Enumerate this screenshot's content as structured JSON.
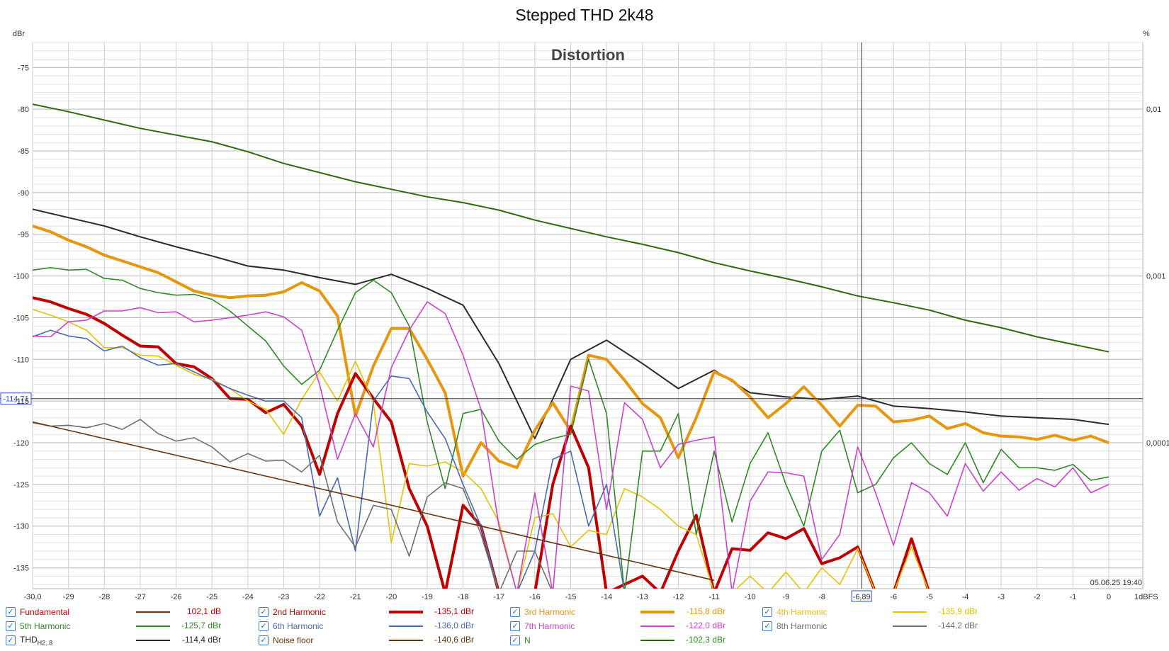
{
  "title": "Stepped THD 2k48",
  "panel_label": "Distortion",
  "timestamp": "05.06.25 19:40",
  "y_unit_left": "dBr",
  "y_unit_right": "%",
  "x_unit": "1dBFS",
  "cursor": {
    "y_readout": "-114,71",
    "x_readout": "-6,89"
  },
  "chart_data": {
    "type": "line",
    "title": "Stepped THD 2k48",
    "xlabel": "1dBFS",
    "ylabel": "dBr",
    "xlim": [
      -30,
      0
    ],
    "ylim": [
      -137.5,
      -72
    ],
    "x_tick_labels": [
      "-30,0",
      "-29",
      "-28",
      "-27",
      "-26",
      "-25",
      "-24",
      "-23",
      "-22",
      "-21",
      "-20",
      "-19",
      "-18",
      "-17",
      "-16",
      "-15",
      "-14",
      "-13",
      "-12",
      "-11",
      "-10",
      "-9",
      "-8",
      "-6,89",
      "-6",
      "-5",
      "-4",
      "-3",
      "-2",
      "-1",
      "0"
    ],
    "y_tick_labels": [
      "-75",
      "-80",
      "-85",
      "-90",
      "-95",
      "-100",
      "-105",
      "-110",
      "-115",
      "-120",
      "-125",
      "-130",
      "-135"
    ],
    "right_tick_labels": [
      "0,01",
      "0,001",
      "0,0001"
    ],
    "grid": true,
    "cursor_lines": {
      "x": -6.89,
      "y": -114.71
    },
    "series": [
      {
        "name": "N",
        "color": "#2e6a0e",
        "width": 2,
        "x": [
          -30,
          -29,
          -28,
          -27,
          -26,
          -25,
          -24,
          -23,
          -22,
          -21,
          -20,
          -19,
          -18,
          -17,
          -16,
          -15,
          -14,
          -13,
          -12,
          -11,
          -10,
          -9,
          -8,
          -7,
          -6,
          -5,
          -4,
          -3,
          -2,
          -1,
          0
        ],
        "y": [
          -79.4,
          -80.3,
          -81.3,
          -82.3,
          -83.1,
          -83.9,
          -85.1,
          -86.5,
          -87.6,
          -88.7,
          -89.6,
          -90.5,
          -91.2,
          -92.1,
          -93.3,
          -94.3,
          -95.3,
          -96.2,
          -97.2,
          -98.4,
          -99.4,
          -100.3,
          -101.3,
          -102.4,
          -103.2,
          -104.1,
          -105.3,
          -106.2,
          -107.3,
          -108.2,
          -109.1
        ]
      },
      {
        "name": "THD H2..8",
        "color": "#2b2b2b",
        "width": 2,
        "x": [
          -30,
          -29,
          -28,
          -27,
          -26,
          -25,
          -24,
          -23,
          -22,
          -21,
          -20,
          -19,
          -18,
          -17,
          -16,
          -15,
          -14,
          -13,
          -12,
          -11,
          -10,
          -9,
          -8,
          -7,
          -6,
          -5,
          -4,
          -3,
          -2,
          -1,
          0
        ],
        "y": [
          -92,
          -93,
          -94,
          -95.3,
          -96.5,
          -97.6,
          -98.8,
          -99.3,
          -100.2,
          -101,
          -99.8,
          -101.5,
          -103.5,
          -110.5,
          -119.5,
          -110,
          -107.7,
          -110.5,
          -113.5,
          -111.3,
          -114,
          -114.5,
          -114.8,
          -114.4,
          -115.6,
          -115.9,
          -116.3,
          -116.8,
          -117,
          -117.2,
          -117.8
        ]
      },
      {
        "name": "3rd Harmonic",
        "color": "#e8960f",
        "width": 4,
        "x": [
          -30,
          -29.5,
          -29,
          -28.5,
          -28,
          -27.5,
          -27,
          -26.5,
          -26,
          -25.5,
          -25,
          -24.5,
          -24,
          -23.5,
          -23,
          -22.5,
          -22,
          -21.5,
          -21,
          -20.5,
          -20,
          -19.5,
          -19,
          -18.5,
          -18,
          -17.5,
          -17,
          -16.5,
          -16,
          -15.5,
          -15,
          -14.5,
          -14,
          -13.5,
          -13,
          -12.5,
          -12,
          -11.5,
          -11,
          -10.5,
          -10,
          -9.5,
          -9,
          -8.5,
          -8,
          -7.5,
          -7,
          -6.5,
          -6,
          -5.5,
          -5,
          -4.5,
          -4,
          -3.5,
          -3,
          -2.5,
          -2,
          -1.5,
          -1,
          -0.5,
          0
        ],
        "y": [
          -94,
          -94.7,
          -95.7,
          -96.5,
          -97.5,
          -98.2,
          -98.9,
          -99.6,
          -100.7,
          -101.8,
          -102.3,
          -102.6,
          -102.4,
          -102.3,
          -101.9,
          -100.8,
          -101.8,
          -104.8,
          -116.8,
          -110.8,
          -106.3,
          -106.3,
          -110,
          -114,
          -124,
          -120,
          -122.2,
          -123,
          -118.5,
          -115.2,
          -118.6,
          -109.5,
          -110,
          -112.5,
          -115.3,
          -117,
          -121.8,
          -117,
          -111.5,
          -112.5,
          -114.5,
          -117,
          -115.3,
          -113.3,
          -115.5,
          -118,
          -115.5,
          -115.6,
          -117.5,
          -117.3,
          -116.8,
          -118.3,
          -117.7,
          -118.8,
          -119.2,
          -119.3,
          -119.6,
          -119.1,
          -119.7,
          -119.2,
          -120
        ]
      },
      {
        "name": "2nd Harmonic",
        "color": "#c00000",
        "width": 4,
        "x": [
          -30,
          -29.5,
          -29,
          -28.5,
          -28,
          -27.5,
          -27,
          -26.5,
          -26,
          -25.5,
          -25,
          -24.5,
          -24,
          -23.5,
          -23,
          -22.5,
          -22,
          -21.5,
          -21,
          -20.5,
          -20,
          -19.5,
          -19,
          -18.5,
          -18,
          -17.5,
          -17,
          -16,
          -15.5,
          -15,
          -14.5,
          -14,
          -13,
          -12.5,
          -12,
          -11.5,
          -11,
          -10.5,
          -10,
          -9.5,
          -9,
          -8.5,
          -8,
          -7.5,
          -7,
          -6.5,
          -6,
          -5.5,
          -5,
          -4,
          -3,
          -2,
          -1,
          0
        ],
        "y": [
          -102.6,
          -103.1,
          -103.9,
          -104.6,
          -105.7,
          -107.1,
          -108.4,
          -108.5,
          -110.5,
          -110.9,
          -112.3,
          -114.7,
          -114.8,
          -116.4,
          -115.4,
          -118,
          -123.8,
          -116.5,
          -111.7,
          -114.7,
          -117.5,
          -125.5,
          -130,
          -138,
          -127.5,
          -130,
          -138,
          -138,
          -125,
          -118,
          -123,
          -138,
          -136,
          -138,
          -133,
          -128.7,
          -138,
          -132.7,
          -132.9,
          -130.8,
          -131.5,
          -130.3,
          -134.5,
          -133.8,
          -132.5,
          -138,
          -138,
          -131.5,
          -138,
          -138,
          -138,
          -138,
          -138,
          -138
        ]
      },
      {
        "name": "4th Harmonic",
        "color": "#e6c200",
        "width": 1.6,
        "x": [
          -30,
          -29.5,
          -29,
          -28.5,
          -28,
          -27.5,
          -27,
          -26.5,
          -26,
          -25.5,
          -25,
          -24.5,
          -24,
          -23.5,
          -23,
          -22.5,
          -22,
          -21.5,
          -21,
          -20.5,
          -20,
          -19.5,
          -19,
          -18.5,
          -18,
          -17.5,
          -17,
          -16.5,
          -16,
          -15.5,
          -15,
          -14.5,
          -14,
          -13.5,
          -13,
          -12.5,
          -12,
          -11.5,
          -11,
          -10.5,
          -10,
          -9.5,
          -9,
          -8.5,
          -8,
          -7.5,
          -7,
          -6.5,
          -6,
          -5.5,
          -5
        ],
        "y": [
          -104,
          -104.7,
          -105.5,
          -106.5,
          -108.6,
          -108.6,
          -109.5,
          -109.6,
          -110.7,
          -111.8,
          -112.4,
          -113.5,
          -115,
          -116,
          -119,
          -114.8,
          -111.5,
          -115,
          -110.2,
          -115.2,
          -132,
          -122.5,
          -122.8,
          -122.3,
          -123.5,
          -125.5,
          -129.5,
          -138,
          -129,
          -128.5,
          -132.5,
          -130.5,
          -131,
          -125.5,
          -126.5,
          -128,
          -130,
          -131,
          -138,
          -138,
          -136,
          -138,
          -135.5,
          -138,
          -135,
          -137,
          -132.7,
          -138,
          -138,
          -132.5,
          -138
        ]
      },
      {
        "name": "5th Harmonic",
        "color": "#2e8b22",
        "width": 1.6,
        "x": [
          -30,
          -29.5,
          -29,
          -28.5,
          -28,
          -27.5,
          -27,
          -26.5,
          -26,
          -25.5,
          -25,
          -24.5,
          -24,
          -23.5,
          -23,
          -22.5,
          -22,
          -21.5,
          -21,
          -20.5,
          -20,
          -19.5,
          -19,
          -18.5,
          -18,
          -17.5,
          -17,
          -16.5,
          -16,
          -15.5,
          -15,
          -14.5,
          -14,
          -13.5,
          -13,
          -12.5,
          -12,
          -11.5,
          -11,
          -10.5,
          -10,
          -9.5,
          -9,
          -8.5,
          -8,
          -7.5,
          -7,
          -6.5,
          -6,
          -5.5,
          -5,
          -4.5,
          -4,
          -3.5,
          -3,
          -2.5,
          -2,
          -1.5,
          -1,
          -0.5,
          0
        ],
        "y": [
          -99.3,
          -99,
          -99.3,
          -99.2,
          -100.3,
          -100.5,
          -101.5,
          -102,
          -102.3,
          -102.2,
          -102.8,
          -104.2,
          -106,
          -107.8,
          -110.8,
          -113,
          -111.3,
          -106.5,
          -102,
          -100.5,
          -102,
          -106,
          -117.5,
          -125.5,
          -116.5,
          -116,
          -119.8,
          -122,
          -120.2,
          -119.5,
          -119,
          -110,
          -116.5,
          -138,
          -121,
          -121,
          -116.5,
          -131,
          -121,
          -129.5,
          -122.5,
          -118.8,
          -125,
          -130,
          -121,
          -118.5,
          -126,
          -125,
          -121.8,
          -120,
          -122.5,
          -123.8,
          -120,
          -124.8,
          -120.8,
          -123,
          -123,
          -123.3,
          -122.6,
          -124.5,
          -124.1
        ]
      },
      {
        "name": "6th Harmonic",
        "color": "#4a6ab8",
        "width": 1.6,
        "x": [
          -30,
          -29.5,
          -29,
          -28.5,
          -28,
          -27.5,
          -27,
          -26.5,
          -26,
          -25.5,
          -25,
          -24.5,
          -24,
          -23.5,
          -23,
          -22.5,
          -22,
          -21.5,
          -21,
          -20.5,
          -20,
          -19.5,
          -19,
          -18.5,
          -18,
          -17.5,
          -17,
          -16.5,
          -16,
          -15.5,
          -15,
          -14.5,
          -14,
          -13.5,
          -13
        ],
        "y": [
          -107.3,
          -106.5,
          -107.2,
          -107.5,
          -109,
          -108.4,
          -109.8,
          -110.7,
          -110.5,
          -111.5,
          -112.5,
          -113.5,
          -114.3,
          -115,
          -115,
          -117,
          -128.8,
          -124.2,
          -133,
          -115,
          -112,
          -112.3,
          -116.3,
          -119.5,
          -125,
          -130,
          -138,
          -138,
          -133,
          -122,
          -121,
          -130,
          -125,
          -138,
          -138
        ]
      },
      {
        "name": "7th Harmonic",
        "color": "#d040d0",
        "width": 1.6,
        "x": [
          -30,
          -29.5,
          -29,
          -28.5,
          -28,
          -27.5,
          -27,
          -26.5,
          -26,
          -25.5,
          -25,
          -24.5,
          -24,
          -23.5,
          -23,
          -22.5,
          -22,
          -21.5,
          -21,
          -20.5,
          -20,
          -19.5,
          -19,
          -18.5,
          -18,
          -17.5,
          -17,
          -16.5,
          -16,
          -15.5,
          -15,
          -14.5,
          -14,
          -13.5,
          -13,
          -12.5,
          -12,
          -11.5,
          -11,
          -10.5,
          -10,
          -9.5,
          -9,
          -8.5,
          -8,
          -7.5,
          -7,
          -6.5,
          -6,
          -5.5,
          -5,
          -4.5,
          -4,
          -3.5,
          -3,
          -2.5,
          -2,
          -1.5,
          -1,
          -0.5,
          0
        ],
        "y": [
          -107.2,
          -107.3,
          -105.5,
          -105.3,
          -104.2,
          -104.2,
          -103.8,
          -104.4,
          -104.3,
          -105.5,
          -105.3,
          -105,
          -104.7,
          -104.3,
          -104.9,
          -106.5,
          -113,
          -122,
          -116.5,
          -120.5,
          -111,
          -106.5,
          -103.1,
          -104.5,
          -109.5,
          -116,
          -130,
          -138,
          -126,
          -138,
          -113.2,
          -113.8,
          -128,
          -115.2,
          -117.2,
          -123,
          -120.2,
          -119.7,
          -119.3,
          -138,
          -127,
          -123.5,
          -123.6,
          -124,
          -134,
          -131,
          -120.5,
          -126,
          -132.3,
          -124.8,
          -126,
          -128.8,
          -122.5,
          -125.8,
          -123.5,
          -125.7,
          -124.3,
          -125.3,
          -123,
          -126,
          -125
        ]
      },
      {
        "name": "8th Harmonic",
        "color": "#707070",
        "width": 1.6,
        "x": [
          -30,
          -29.5,
          -29,
          -28.5,
          -28,
          -27.5,
          -27,
          -26.5,
          -26,
          -25.5,
          -25,
          -24.5,
          -24,
          -23.5,
          -23,
          -22.5,
          -22,
          -21.5,
          -21,
          -20.5,
          -20,
          -19.5,
          -19,
          -18.5,
          -18,
          -17.5,
          -17,
          -16.5,
          -16,
          -15.5,
          -15,
          -14.5,
          -14
        ],
        "y": [
          -117.6,
          -118,
          -117.9,
          -118.2,
          -117.7,
          -118.4,
          -117.2,
          -118.9,
          -119.8,
          -119.4,
          -120.5,
          -122.3,
          -121.3,
          -122.2,
          -122.1,
          -123.5,
          -121.5,
          -129.5,
          -132.5,
          -127.5,
          -128,
          -133.6,
          -126.5,
          -124.8,
          -125.5,
          -131,
          -138,
          -133,
          -133,
          -138,
          -138,
          -138,
          -138
        ]
      },
      {
        "name": "Noise floor",
        "color": "#6b3510",
        "width": 1.6,
        "x": [
          -30,
          -11
        ],
        "y": [
          -117.5,
          -136.5
        ]
      }
    ]
  },
  "legend": {
    "rows": [
      [
        {
          "name": "Fundamental",
          "value": "102,1 dB",
          "color": "#7a3712",
          "name_color": "#c00000",
          "value_color": "#c00000",
          "thick": false
        },
        {
          "name": "2nd Harmonic",
          "value": "-135,1 dBr",
          "color": "#c00000",
          "name_color": "#c00000",
          "value_color": "#c00000",
          "thick": true
        },
        {
          "name": "3rd Harmonic",
          "value": "-115,8 dBr",
          "color": "#e8960f",
          "name_color": "#e8960f",
          "value_color": "#e8960f",
          "thick": true
        },
        {
          "name": "4th Harmonic",
          "value": "-135,9 dBr",
          "color": "#e6c200",
          "name_color": "#e6c200",
          "value_color": "#e6c200",
          "thick": false
        }
      ],
      [
        {
          "name": "5th Harmonic",
          "value": "-125,7 dBr",
          "color": "#2e8b22",
          "name_color": "#2e8b22",
          "value_color": "#2e8b22",
          "thick": false
        },
        {
          "name": "6th Harmonic",
          "value": "-136,0 dBr",
          "color": "#4a6ab8",
          "name_color": "#4a6ab8",
          "value_color": "#4a6ab8",
          "thick": false
        },
        {
          "name": "7th Harmonic",
          "value": "-122,0 dBr",
          "color": "#d040d0",
          "name_color": "#d040d0",
          "value_color": "#d040d0",
          "thick": false
        },
        {
          "name": "8th Harmonic",
          "value": "-144,2 dBr",
          "color": "#707070",
          "name_color": "#707070",
          "value_color": "#707070",
          "thick": false
        }
      ],
      [
        {
          "name": "THD",
          "sub": "H2..8",
          "value": "-114,4 dBr",
          "color": "#2b2b2b",
          "name_color": "#2b2b2b",
          "value_color": "#2b2b2b",
          "thick": false
        },
        {
          "name": "Noise floor",
          "value": "-140,6 dBr",
          "color": "#6b3510",
          "name_color": "#6b3510",
          "value_color": "#6b3510",
          "thick": false
        },
        {
          "name": "N",
          "value": "-102,3 dBr",
          "color": "#2e6a0e",
          "name_color": "#2e8b22",
          "value_color": "#2e8b22",
          "thick": false
        }
      ]
    ]
  }
}
